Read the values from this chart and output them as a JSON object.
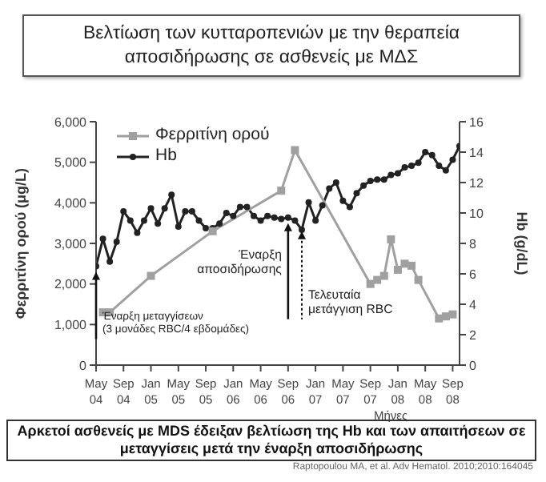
{
  "chart_data": {
    "type": "line",
    "title": "Βελτίωση των κυτταροπενιών με την θεραπεία αποσιδήρωσης σε ασθενείς με ΜΔΣ",
    "xlabel": "Μήνες",
    "ylabel": "Φερριτίνη ορού (μg/L)",
    "y2label": "Hb (g/dL)",
    "xlim": [
      "2004-05",
      "2008-10"
    ],
    "xticks": [
      {
        "value": "2004-05",
        "label": "May 04"
      },
      {
        "value": "2004-09",
        "label": "Sep 04"
      },
      {
        "value": "2005-01",
        "label": "Jan 05"
      },
      {
        "value": "2005-05",
        "label": "May 05"
      },
      {
        "value": "2005-09",
        "label": "Sep 05"
      },
      {
        "value": "2006-01",
        "label": "Jan 06"
      },
      {
        "value": "2006-05",
        "label": "May 06"
      },
      {
        "value": "2006-09",
        "label": "Sep 06"
      },
      {
        "value": "2007-01",
        "label": "Jan 07"
      },
      {
        "value": "2007-05",
        "label": "May 07"
      },
      {
        "value": "2007-09",
        "label": "Sep 07"
      },
      {
        "value": "2008-01",
        "label": "Jan 08"
      },
      {
        "value": "2008-05",
        "label": "May 08"
      },
      {
        "value": "2008-09",
        "label": "Sep 08"
      }
    ],
    "ylim": [
      0,
      6000
    ],
    "yticks": [
      0,
      {
        "value": 1000,
        "label": "1,000"
      },
      {
        "value": 2000,
        "label": "2,000"
      },
      {
        "value": 3000,
        "label": "3,000"
      },
      {
        "value": 4000,
        "label": "4,000"
      },
      {
        "value": 5000,
        "label": "5,000"
      },
      {
        "value": 6000,
        "label": "6,000"
      }
    ],
    "y2lim": [
      0,
      16
    ],
    "y2ticks": [
      0,
      2,
      4,
      6,
      8,
      10,
      12,
      14,
      16
    ],
    "legend": "top left",
    "grid": false,
    "series": [
      {
        "name": "Φερριτίνη ορού",
        "color": "#a0a0a0",
        "marker": "square",
        "x": [
          "2004-06",
          "2004-07",
          "2005-01",
          "2005-10",
          "2006-08",
          "2006-10",
          "2007-09",
          "2007-10",
          "2007-11",
          "2007-12",
          "2008-01",
          "2008-02",
          "2008-03",
          "2008-04",
          "2008-07",
          "2008-08",
          "2008-09"
        ],
        "values": [
          1300,
          1300,
          2200,
          3300,
          4300,
          5300,
          2000,
          2100,
          2200,
          3100,
          2350,
          2500,
          2450,
          2100,
          1150,
          1200,
          1250
        ]
      },
      {
        "name": "Hb",
        "color": "#222222",
        "marker": "circle",
        "axis": "y2",
        "x": [
          "2004-05",
          "2004-06",
          "2004-07",
          "2004-08",
          "2004-09",
          "2004-10",
          "2004-11",
          "2004-12",
          "2005-01",
          "2005-02",
          "2005-03",
          "2005-04",
          "2005-05",
          "2005-06",
          "2005-07",
          "2005-08",
          "2005-09",
          "2005-10",
          "2005-11",
          "2005-12",
          "2006-01",
          "2006-02",
          "2006-03",
          "2006-04",
          "2006-05",
          "2006-06",
          "2006-07",
          "2006-08",
          "2006-09",
          "2006-10",
          "2006-11",
          "2006-12",
          "2007-01",
          "2007-02",
          "2007-03",
          "2007-04",
          "2007-05",
          "2007-06",
          "2007-07",
          "2007-08",
          "2007-09",
          "2007-10",
          "2007-11",
          "2007-12",
          "2008-01",
          "2008-02",
          "2008-03",
          "2008-04",
          "2008-05",
          "2008-06",
          "2008-07",
          "2008-08",
          "2008-09",
          "2008-10"
        ],
        "values": [
          6.5,
          8.3,
          6.8,
          8.1,
          10.1,
          9.5,
          8.7,
          9.5,
          10.3,
          9.3,
          10.3,
          11.2,
          9.1,
          10.1,
          10.1,
          9.5,
          9.0,
          9.0,
          9.3,
          10.0,
          9.8,
          10.4,
          10.4,
          9.8,
          9.5,
          9.8,
          9.7,
          9.6,
          9.7,
          9.5,
          8.9,
          10.7,
          9.5,
          10.5,
          11.6,
          12.0,
          10.8,
          10.4,
          11.3,
          11.8,
          12.1,
          12.2,
          12.2,
          12.5,
          12.6,
          13.0,
          13.1,
          13.3,
          14.0,
          13.8,
          13.1,
          12.8,
          13.5,
          14.4
        ]
      }
    ],
    "annotations": [
      {
        "text": "Έναρξη μεταγγίσεων\n(3 μονάδες RBC/4 εβδομάδες)",
        "x": "2004-05",
        "y": 2300
      },
      {
        "text": "Έναρξη\nαποσιδήρωσης",
        "x": "2006-09",
        "y": 3500
      },
      {
        "text": "Τελευταία\nμετάγγιση RBC",
        "x": "2006-11",
        "y": 3300
      },
      "Αρκετοί ασθενείς με MDS έδειξαν βελτίωση της Hb και των απαιτήσεων σε μεταγγίσεις μετά την έναρξη αποσιδήρωσης",
      "Raptopoulou MA, et al. Adv Hematol. 2010;2010:164045"
    ]
  }
}
